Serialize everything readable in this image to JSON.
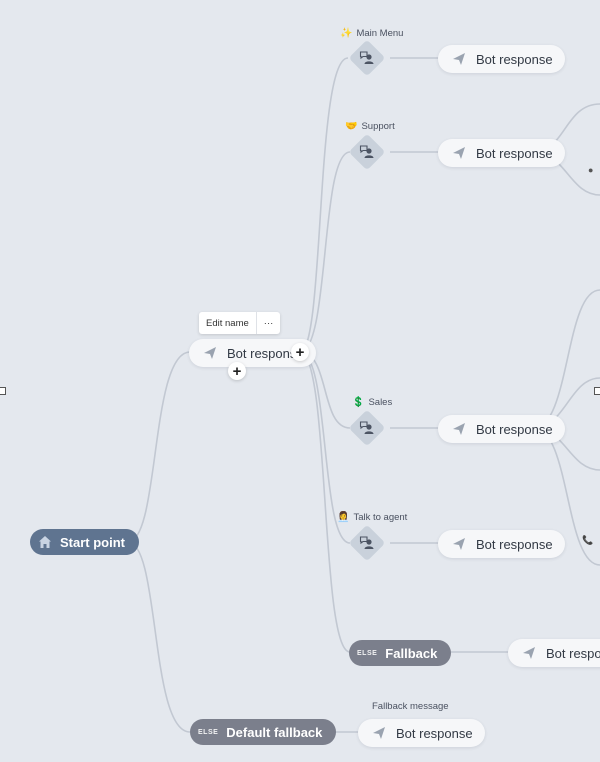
{
  "canvas": {
    "start_label": "Start point",
    "root_response": "Bot response",
    "toolbar": {
      "edit_name": "Edit name",
      "more": "···"
    },
    "add_child": "+",
    "add_sibling": "+",
    "intents": [
      {
        "emoji": "✨",
        "label": "Main Menu",
        "response": "Bot response"
      },
      {
        "emoji": "🤝",
        "label": "Support",
        "response": "Bot response"
      },
      {
        "emoji": "💲",
        "label": "Sales",
        "response": "Bot response"
      },
      {
        "emoji": "👩‍💼",
        "label": "Talk to agent",
        "response": "Bot response"
      }
    ],
    "fallback": {
      "tag": "ELSE",
      "label": "Fallback",
      "response": "Bot response"
    },
    "default_fallback": {
      "tag": "ELSE",
      "label": "Default fallback",
      "note": "Fallback message",
      "response": "Bot response"
    }
  }
}
